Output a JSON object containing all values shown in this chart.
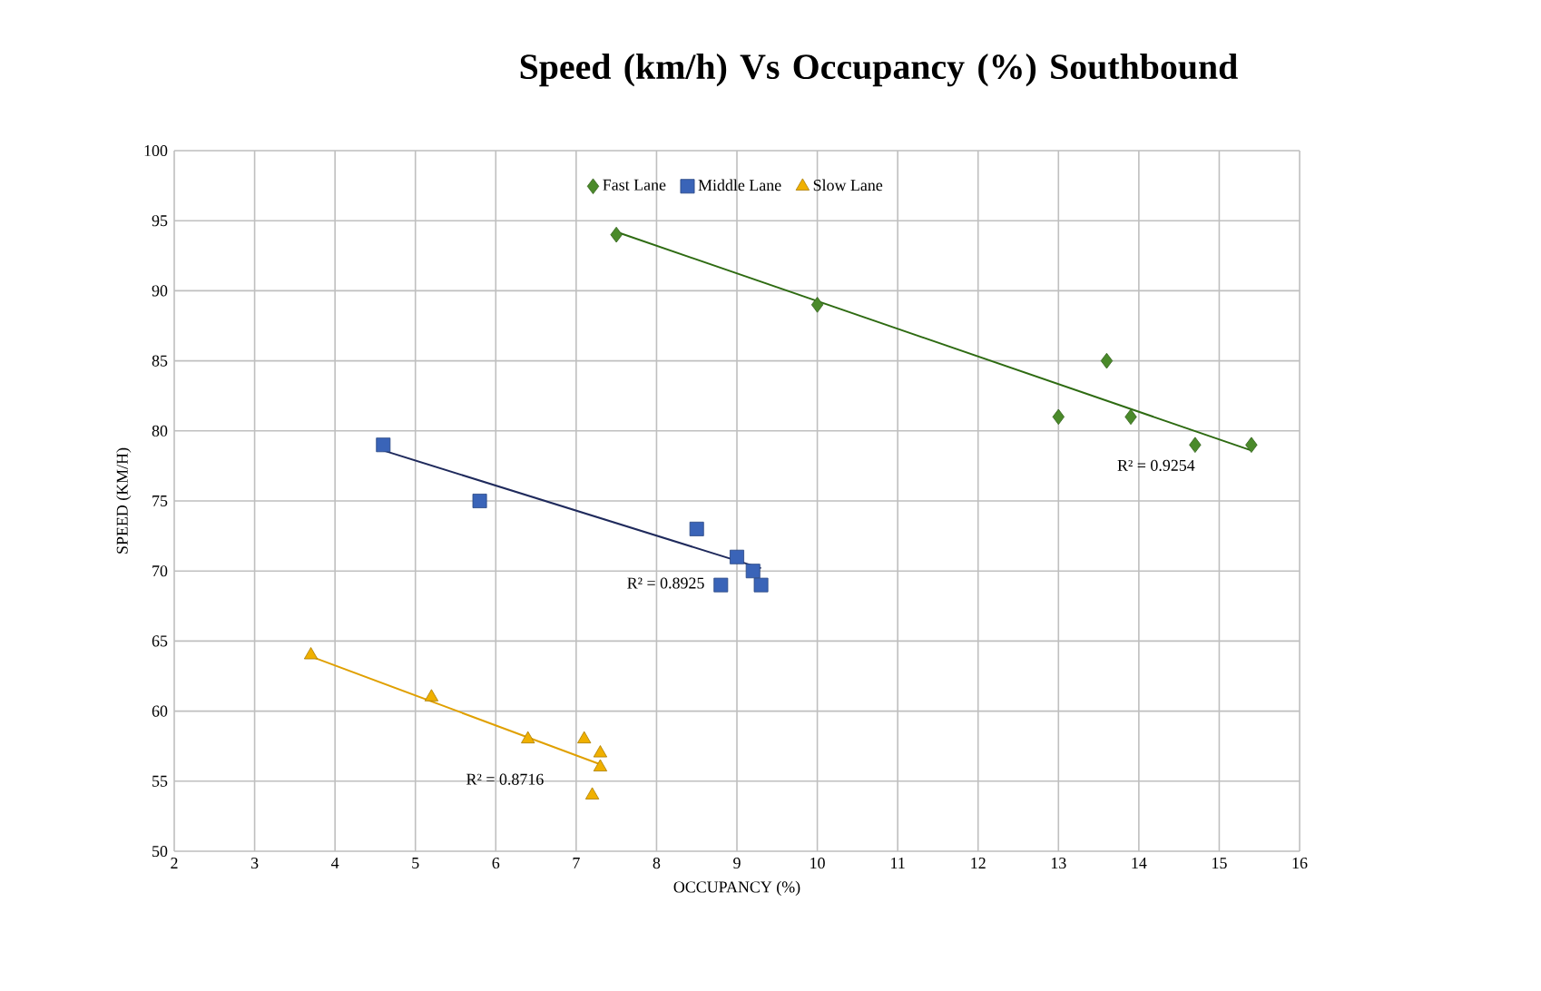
{
  "chart_data": {
    "type": "scatter",
    "title": "Speed (km/h) Vs Occupancy (%) Southbound",
    "xlabel": "OCCUPANCY (%)",
    "ylabel": "SPEED (KM/H)",
    "xlim": [
      2,
      16
    ],
    "xticks": [
      2,
      3,
      4,
      5,
      6,
      7,
      8,
      9,
      10,
      11,
      12,
      13,
      14,
      15,
      16
    ],
    "ylim": [
      50,
      100
    ],
    "yticks": [
      50,
      55,
      60,
      65,
      70,
      75,
      80,
      85,
      90,
      95,
      100
    ],
    "grid": true,
    "legend": "top",
    "series": [
      {
        "name": "Fast Lane",
        "marker": "diamond",
        "color": "#4a8a2a",
        "x": [
          7.5,
          10,
          13,
          13.6,
          13.9,
          14.7,
          15.4
        ],
        "values": [
          94,
          89,
          81,
          85,
          81,
          79,
          79
        ]
      },
      {
        "name": "Middle Lane",
        "marker": "square",
        "color": "#3a64b8",
        "x": [
          4.6,
          5.8,
          8.5,
          8.8,
          9.0,
          9.2,
          9.3
        ],
        "values": [
          79,
          75,
          73,
          69,
          71,
          70,
          69
        ]
      },
      {
        "name": "Slow Lane",
        "marker": "triangle",
        "color": "#f0b000",
        "x": [
          3.7,
          5.2,
          6.4,
          7.1,
          7.3,
          7.3,
          7.2
        ],
        "values": [
          64,
          61,
          58,
          58,
          57,
          56,
          54
        ]
      },
      {
        "type": "line",
        "line_style": "solid",
        "color": "#2e6b12",
        "x": [
          7.5,
          15.4
        ],
        "values": [
          94.2,
          78.6
        ]
      },
      {
        "type": "line",
        "line_style": "solid",
        "color": "#1f2a5c",
        "x": [
          4.6,
          9.3
        ],
        "values": [
          78.6,
          70.2
        ]
      },
      {
        "type": "line",
        "line_style": "solid",
        "color": "#e0a000",
        "x": [
          3.7,
          7.3
        ],
        "values": [
          63.9,
          56.2
        ]
      }
    ],
    "annotations": [
      "R² = 0.9254",
      "R² = 0.8925",
      "R² = 0.8716"
    ]
  }
}
